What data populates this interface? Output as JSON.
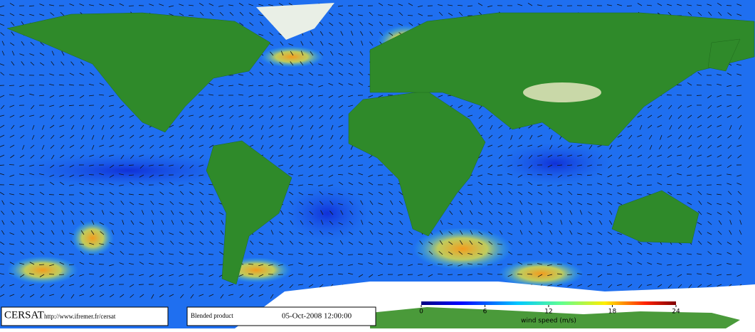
{
  "branding": {
    "logo": "CERSAT",
    "url": "http://www.ifremer.fr/cersat"
  },
  "product": {
    "name": "Blended product",
    "date": "05-Oct-2008 12:00:00"
  },
  "colorbar": {
    "lim": [
      0,
      24
    ],
    "ticks": [
      0,
      6,
      12,
      18,
      24
    ],
    "label": "wind speed (m/s)"
  }
}
